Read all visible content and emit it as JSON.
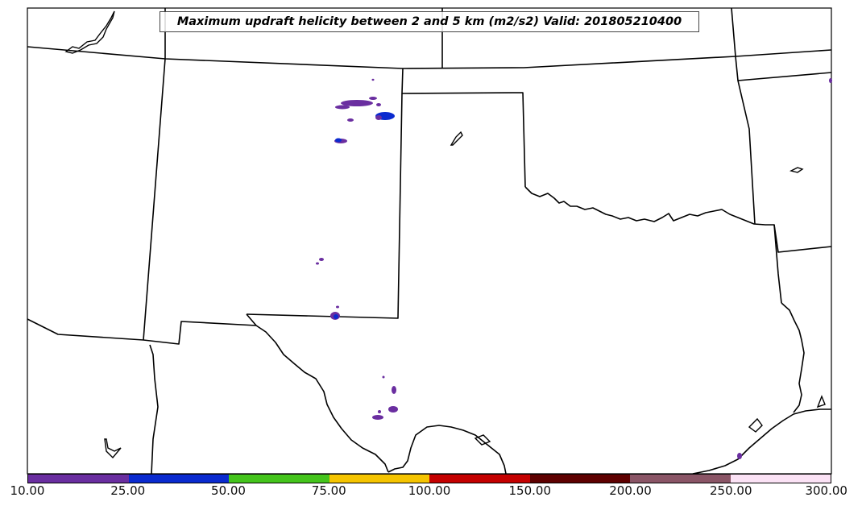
{
  "title": "Maximum updraft helicity between 2 and 5 km (m2/s2) Valid: 201805210400",
  "colorbar": {
    "colors": [
      "#6a2ea0",
      "#0a2acf",
      "#44c41c",
      "#f5c400",
      "#c40000",
      "#5e0000",
      "#8a5566",
      "#fbe2f5"
    ],
    "tick_labels": [
      "10.00",
      "25.00",
      "50.00",
      "75.00",
      "100.00",
      "150.00",
      "200.00",
      "250.00",
      "300.00"
    ]
  }
}
